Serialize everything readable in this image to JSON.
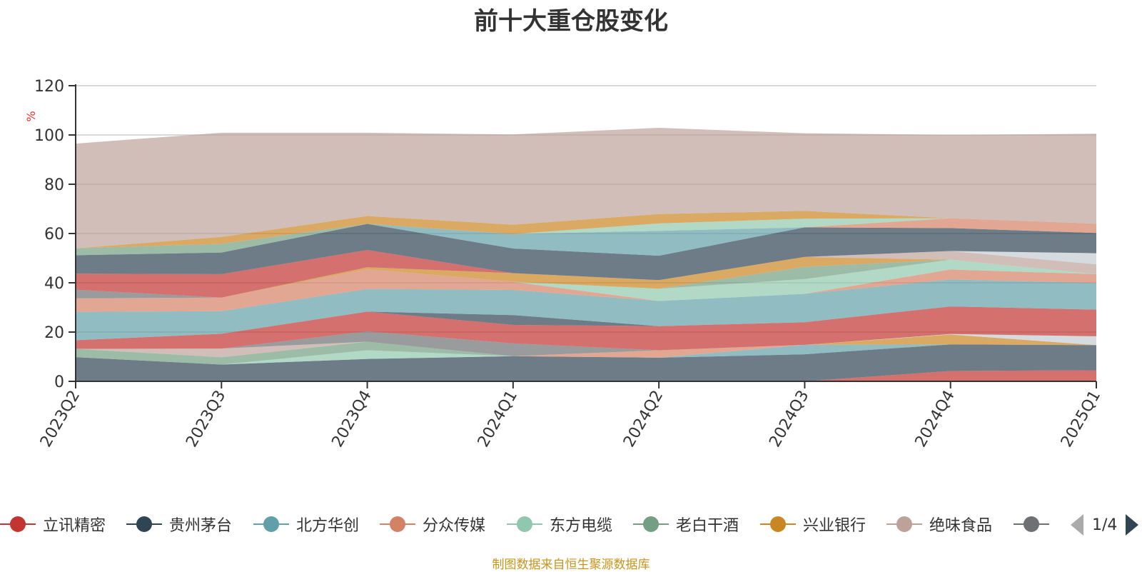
{
  "page": {
    "source_note": "制图数据来自恒生聚源数据库"
  },
  "legend": {
    "page_label": "1/4"
  },
  "chart_data": {
    "type": "area",
    "stacked": true,
    "title": "前十大重仓股变化",
    "ylabel": "%",
    "ylim": [
      0,
      120
    ],
    "yticks": [
      0,
      20,
      40,
      60,
      80,
      100,
      120
    ],
    "categories": [
      "2023Q2",
      "2023Q3",
      "2023Q4",
      "2024Q1",
      "2024Q2",
      "2024Q3",
      "2024Q4",
      "2025Q1"
    ],
    "grid": true,
    "legend_position": "bottom",
    "series": [
      {
        "name": "立讯精密",
        "color": "#c23531",
        "legend": true,
        "values": [
          0,
          0,
          0,
          0,
          0,
          0,
          4.2,
          4.5
        ]
      },
      {
        "name": "贵州茅台",
        "color": "#2f4554",
        "legend": true,
        "values": [
          9.8,
          6.8,
          9.1,
          10.2,
          9.6,
          11.0,
          10.8,
          10.2
        ]
      },
      {
        "name": "北方华创",
        "color": "#61a0a8",
        "legend": true,
        "values": [
          0,
          0,
          0,
          0,
          0,
          3.8,
          0,
          0
        ]
      },
      {
        "name": "分众传媒",
        "color": "#d48265",
        "legend": true,
        "values": [
          0,
          0,
          0,
          0,
          3.0,
          0,
          0,
          0
        ]
      },
      {
        "name": "东方电缆",
        "color": "#91c7ae",
        "legend": true,
        "values": [
          0,
          0,
          3.5,
          0,
          0,
          0,
          0,
          0
        ]
      },
      {
        "name": "老白干酒",
        "color": "#749f83",
        "legend": true,
        "values": [
          3.4,
          3.0,
          3.5,
          0,
          0,
          0,
          0,
          0
        ]
      },
      {
        "name": "兴业银行",
        "color": "#ca8622",
        "legend": true,
        "values": [
          0,
          0,
          0,
          0,
          0,
          0,
          4.0,
          0
        ]
      },
      {
        "name": "绝味食品",
        "color": "#bda29a",
        "legend": true,
        "values": [
          0,
          3.5,
          0,
          0,
          0,
          0,
          0,
          0
        ]
      },
      {
        "name": "",
        "color": "#6e7074",
        "legend": true,
        "values": [
          0,
          0,
          4.2,
          5.2,
          0,
          0,
          0,
          0
        ]
      },
      {
        "name": "",
        "color": "#546570",
        "legend": false,
        "values": [
          0,
          0,
          0,
          0,
          0,
          0,
          0,
          0
        ]
      },
      {
        "name": "",
        "color": "#c4ccd3",
        "legend": false,
        "values": [
          0,
          0,
          0,
          0,
          0,
          0,
          0.2,
          3.6
        ]
      },
      {
        "name": "",
        "color": "#c23531",
        "legend": false,
        "values": [
          3.5,
          6.0,
          8.0,
          7.5,
          9.8,
          9.2,
          11.2,
          10.8
        ]
      },
      {
        "name": "",
        "color": "#2f4554",
        "legend": false,
        "values": [
          0,
          0,
          0,
          4.0,
          0,
          0,
          0,
          0
        ]
      },
      {
        "name": "",
        "color": "#61a0a8",
        "legend": false,
        "values": [
          11.5,
          9.2,
          9.2,
          10.2,
          10.2,
          11.5,
          11.0,
          10.8
        ]
      },
      {
        "name": "",
        "color": "#d48265",
        "legend": false,
        "values": [
          5.5,
          5.5,
          8.0,
          3.3,
          0,
          0,
          4.0,
          3.6
        ]
      },
      {
        "name": "",
        "color": "#91c7ae",
        "legend": false,
        "values": [
          0,
          0,
          0,
          0,
          5.0,
          6.0,
          4.0,
          0
        ]
      },
      {
        "name": "",
        "color": "#749f83",
        "legend": false,
        "values": [
          0,
          0,
          0,
          0,
          0,
          5.0,
          0,
          0
        ]
      },
      {
        "name": "",
        "color": "#ca8622",
        "legend": false,
        "values": [
          0,
          0,
          0.8,
          3.5,
          3.5,
          4.0,
          0,
          0
        ]
      },
      {
        "name": "",
        "color": "#bda29a",
        "legend": false,
        "values": [
          0,
          0,
          0,
          0,
          0,
          0,
          3.5,
          4.0
        ]
      },
      {
        "name": "",
        "color": "#6e7074",
        "legend": false,
        "values": [
          3.5,
          0,
          0,
          0,
          0,
          0,
          0,
          0
        ]
      },
      {
        "name": "",
        "color": "#546570",
        "legend": false,
        "values": [
          0,
          0,
          0,
          0,
          0,
          0,
          0,
          0
        ]
      },
      {
        "name": "",
        "color": "#c4ccd3",
        "legend": false,
        "values": [
          0,
          0,
          0,
          0,
          0,
          0,
          0,
          4.5
        ]
      },
      {
        "name": "",
        "color": "#c23531",
        "legend": false,
        "values": [
          6.5,
          9.5,
          7.0,
          0,
          0,
          0,
          0,
          0
        ]
      },
      {
        "name": "",
        "color": "#2f4554",
        "legend": false,
        "values": [
          7.5,
          8.8,
          10.6,
          10.0,
          9.9,
          12.0,
          9.3,
          8.2
        ]
      },
      {
        "name": "",
        "color": "#61a0a8",
        "legend": false,
        "values": [
          0,
          0,
          0,
          5.9,
          10.1,
          0,
          0,
          0
        ]
      },
      {
        "name": "",
        "color": "#d48265",
        "legend": false,
        "values": [
          0,
          0,
          0,
          0,
          0,
          0,
          4.0,
          3.8
        ]
      },
      {
        "name": "",
        "color": "#91c7ae",
        "legend": false,
        "values": [
          0,
          0,
          0,
          0,
          3.0,
          3.5,
          0,
          0
        ]
      },
      {
        "name": "",
        "color": "#749f83",
        "legend": false,
        "values": [
          2.8,
          3.5,
          0,
          0,
          0,
          0,
          0,
          0
        ]
      },
      {
        "name": "",
        "color": "#ca8622",
        "legend": false,
        "values": [
          0,
          2.8,
          3.2,
          3.8,
          3.8,
          3.2,
          0,
          0
        ]
      },
      {
        "name": "",
        "color": "#bda29a",
        "legend": false,
        "values": [
          42.5,
          42.3,
          33.8,
          36.6,
          35.0,
          31.5,
          33.8,
          36.5
        ]
      }
    ]
  }
}
